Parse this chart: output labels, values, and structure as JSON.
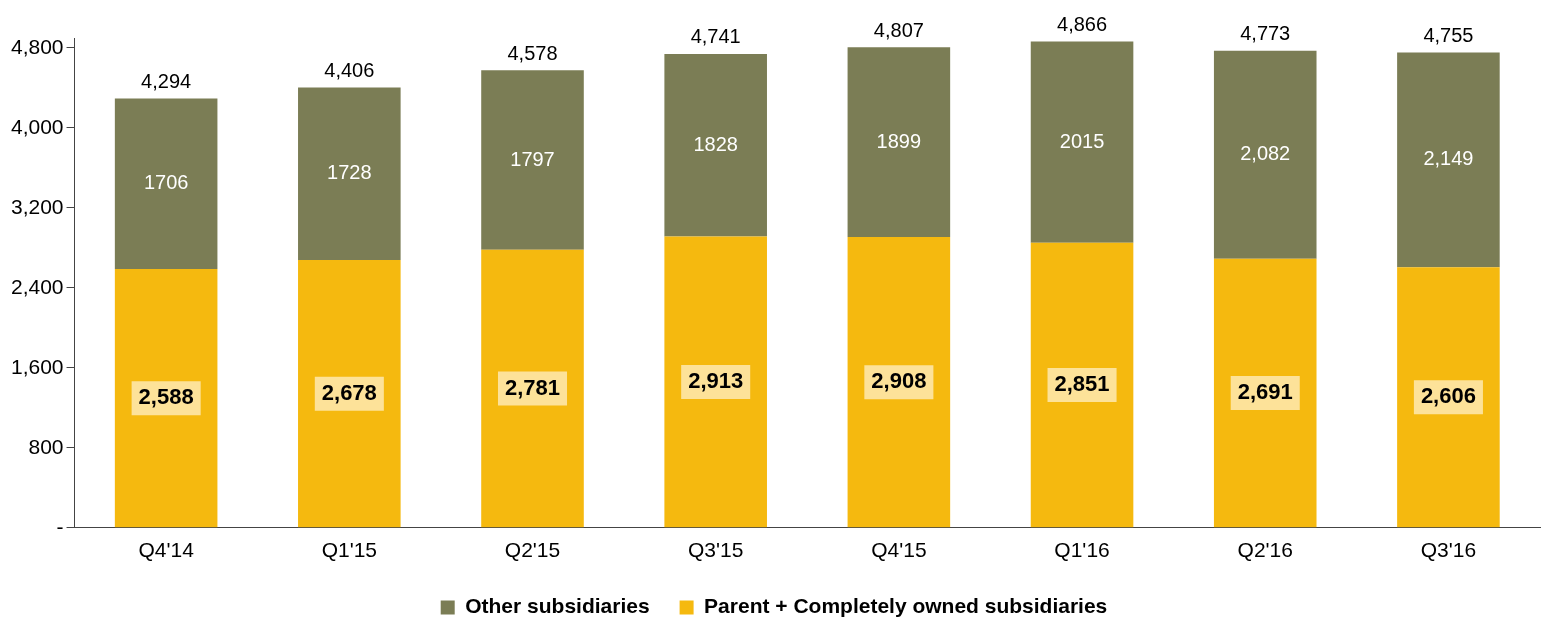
{
  "chart_data": {
    "type": "bar",
    "stacked": true,
    "categories": [
      "Q4'14",
      "Q1'15",
      "Q2'15",
      "Q3'15",
      "Q4'15",
      "Q1'16",
      "Q2'16",
      "Q3'16"
    ],
    "series": [
      {
        "name": "Parent + Completely owned subsidiaries",
        "color": "#f5b90f",
        "values": [
          2588,
          2678,
          2781,
          2913,
          2908,
          2851,
          2691,
          2606
        ],
        "value_labels": [
          "2,588",
          "2,678",
          "2,781",
          "2,913",
          "2,908",
          "2,851",
          "2,691",
          "2,606"
        ]
      },
      {
        "name": "Other subsidiaries",
        "color": "#7b7d55",
        "values": [
          1706,
          1728,
          1797,
          1828,
          1899,
          2015,
          2082,
          2149
        ],
        "value_labels": [
          "1706",
          "1728",
          "1797",
          "1828",
          "1899",
          "2015",
          "2,082",
          "2,149"
        ]
      }
    ],
    "totals": [
      "4,294",
      "4,406",
      "4,578",
      "4,741",
      "4,807",
      "4,866",
      "4,773",
      "4,755"
    ],
    "ylim": [
      0,
      4900
    ],
    "yticks": [
      {
        "value": 0,
        "label": "-"
      },
      800,
      {
        "value": 1600,
        "label": "1,600"
      },
      {
        "value": 2400,
        "label": "2,400"
      },
      {
        "value": 3200,
        "label": "3,200"
      },
      {
        "value": 4000,
        "label": "4,000"
      },
      {
        "value": 4800,
        "label": "4,800"
      }
    ],
    "grid": false,
    "legend": "bottom"
  }
}
